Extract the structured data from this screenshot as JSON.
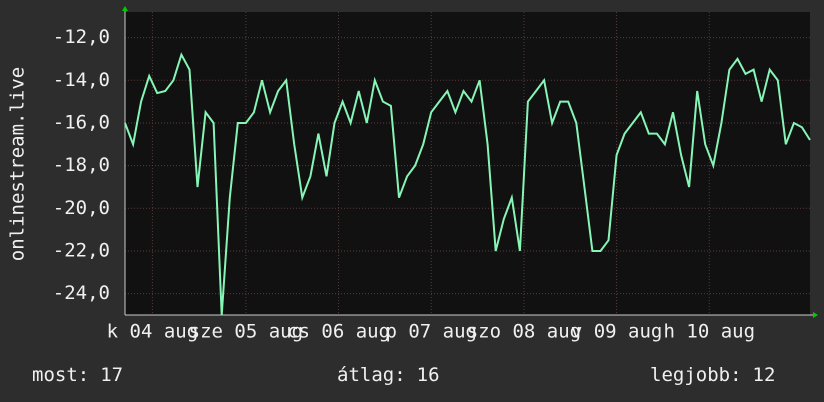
{
  "chart_data": {
    "type": "line",
    "y_label": "onlinestream.live",
    "color": "#86f5b6",
    "values": [
      -16,
      -17,
      -15,
      -13.8,
      -14.6,
      -14.5,
      -14,
      -12.8,
      -13.5,
      -19,
      -15.5,
      -16,
      -25,
      -19.5,
      -16,
      -16,
      -15.5,
      -14,
      -15.5,
      -14.5,
      -14,
      -17,
      -19.5,
      -18.5,
      -16.5,
      -18.5,
      -16,
      -15,
      -16,
      -14.5,
      -16,
      -14,
      -15,
      -15.2,
      -19.5,
      -18.5,
      -18,
      -17,
      -15.5,
      -15,
      -14.5,
      -15.5,
      -14.5,
      -15,
      -14,
      -17,
      -22,
      -20.5,
      -19.5,
      -22,
      -15,
      -14.5,
      -14,
      -16,
      -15,
      -15,
      -16,
      -19,
      -22,
      -22,
      -21.5,
      -17.5,
      -16.5,
      -16,
      -15.5,
      -16.5,
      -16.5,
      -17,
      -15.5,
      -17.5,
      -19,
      -14.5,
      -17,
      -18,
      -16,
      -13.5,
      -13,
      -13.7,
      -13.5,
      -15,
      -13.5,
      -14,
      -17,
      -16,
      -16.2,
      -16.8
    ],
    "xlim": [
      0,
      85
    ],
    "xticks": [
      {
        "value": 3.4,
        "label": "k 04 aug"
      },
      {
        "value": 15,
        "label": "sze 05 aug"
      },
      {
        "value": 26.5,
        "label": "cs 06 aug"
      },
      {
        "value": 38,
        "label": "p 07 aug"
      },
      {
        "value": 49.5,
        "label": "szo 08 aug"
      },
      {
        "value": 61,
        "label": "v 09 aug"
      },
      {
        "value": 72.5,
        "label": "h 10 aug"
      }
    ],
    "ylim": [
      -25,
      -10.8
    ],
    "yticks": [
      {
        "value": -24,
        "label": "-24,0"
      },
      {
        "value": -22,
        "label": "-22,0"
      },
      {
        "value": -20,
        "label": "-20,0"
      },
      {
        "value": -18,
        "label": "-18,0"
      },
      {
        "value": -16,
        "label": "-16,0"
      },
      {
        "value": -14,
        "label": "-14,0"
      },
      {
        "value": -12,
        "label": "-12,0"
      }
    ],
    "grid": true,
    "footer": [
      {
        "label": "most:",
        "value": 17
      },
      {
        "label": "átlag:",
        "value": 16
      },
      {
        "label": "legjobb:",
        "value": 12
      }
    ]
  }
}
